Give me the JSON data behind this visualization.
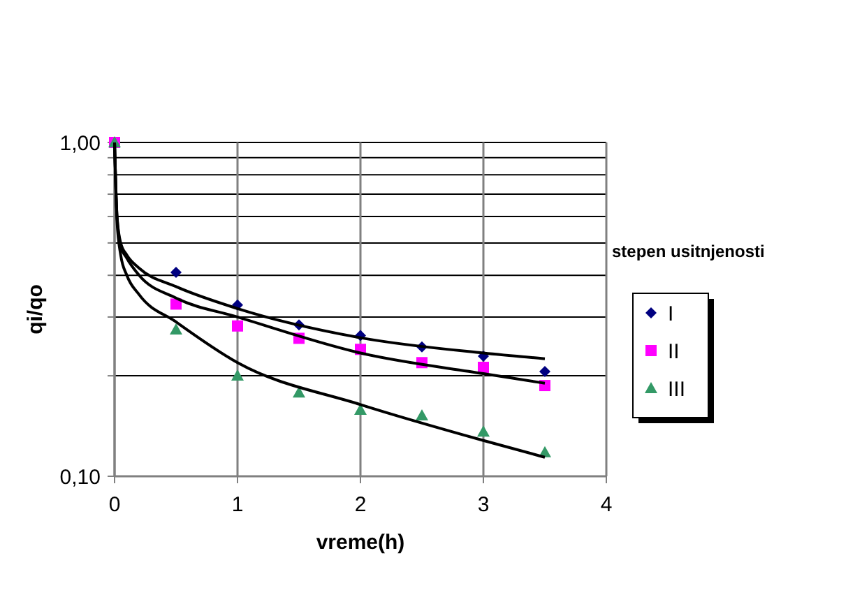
{
  "chart_data": {
    "type": "scatter",
    "xlabel": "vreme(h)",
    "ylabel": "qi/qo",
    "legend_title": "stepen usitnjenosti",
    "log": "y",
    "grid": true,
    "legend": "right",
    "xlim": [
      0,
      4
    ],
    "xticks": [
      0,
      1,
      2,
      3,
      4
    ],
    "ylim": [
      0.1,
      1
    ],
    "yticks": [
      {
        "value": 0.1,
        "label": "0,10"
      },
      {
        "value": 0.2,
        "label": null
      },
      {
        "value": 0.3,
        "label": null
      },
      {
        "value": 0.4,
        "label": null
      },
      {
        "value": 0.5,
        "label": null
      },
      {
        "value": 0.6,
        "label": null
      },
      {
        "value": 0.7,
        "label": null
      },
      {
        "value": 0.8,
        "label": null
      },
      {
        "value": 0.9,
        "label": null
      },
      {
        "value": 1,
        "label": "1,00"
      }
    ],
    "series": [
      {
        "name": "I",
        "color": "#000080",
        "marker": "diamond",
        "x": [
          0.5,
          1,
          1.5,
          2,
          2.5,
          3,
          3.5
        ],
        "values": [
          0.408,
          0.326,
          0.284,
          0.264,
          0.244,
          0.229,
          0.206
        ]
      },
      {
        "name": "II",
        "color": "#ff00ff",
        "marker": "square",
        "x": [
          0,
          0.5,
          1,
          1.5,
          2,
          2.5,
          3,
          3.5
        ],
        "values": [
          1,
          0.328,
          0.282,
          0.259,
          0.24,
          0.219,
          0.212,
          0.187
        ]
      },
      {
        "name": "III",
        "color": "#339966",
        "marker": "triangle",
        "x": [
          0,
          0.5,
          1,
          1.5,
          2,
          2.5,
          3,
          3.5
        ],
        "values": [
          1,
          0.275,
          0.2,
          0.178,
          0.158,
          0.152,
          0.136,
          0.118
        ]
      },
      {
        "type": "line",
        "color": "#000000",
        "marker": "none",
        "x": [
          0,
          0.02,
          0.05,
          0.1,
          0.2,
          0.5,
          1,
          2,
          3,
          3.5
        ],
        "values": [
          1,
          0.6,
          0.5,
          0.46,
          0.42,
          0.37,
          0.318,
          0.26,
          0.234,
          0.225
        ]
      },
      {
        "type": "line",
        "color": "#000000",
        "marker": "none",
        "x": [
          0,
          0.02,
          0.05,
          0.1,
          0.2,
          0.5,
          1,
          2,
          3,
          3.5
        ],
        "values": [
          1,
          0.6,
          0.49,
          0.45,
          0.4,
          0.342,
          0.3,
          0.234,
          0.203,
          0.19
        ]
      },
      {
        "type": "line",
        "color": "#000000",
        "marker": "none",
        "x": [
          0,
          0.02,
          0.05,
          0.1,
          0.2,
          0.5,
          1,
          2,
          3,
          3.5
        ],
        "values": [
          1,
          0.58,
          0.46,
          0.4,
          0.35,
          0.29,
          0.219,
          0.164,
          0.128,
          0.114
        ]
      }
    ]
  }
}
